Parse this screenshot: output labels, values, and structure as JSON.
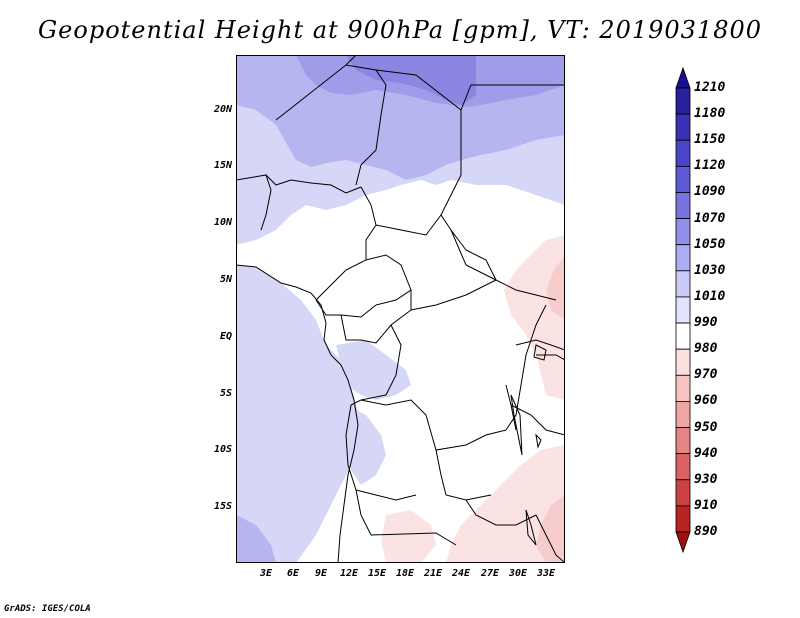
{
  "title": "Geopotential Height at 900hPa [gpm], VT: 2019031800",
  "footer": "GrADS: IGES/COLA",
  "map": {
    "region": "Central Africa",
    "lat_labels": [
      "20N",
      "15N",
      "10N",
      "5N",
      "EQ",
      "5S",
      "10S",
      "15S"
    ],
    "lon_labels": [
      "3E",
      "6E",
      "9E",
      "12E",
      "15E",
      "18E",
      "21E",
      "24E",
      "27E",
      "30E",
      "33E"
    ],
    "lat_range": [
      -20,
      25
    ],
    "lon_range": [
      0,
      35
    ]
  },
  "colorbar": {
    "levels": [
      "1210",
      "1180",
      "1150",
      "1120",
      "1090",
      "1070",
      "1050",
      "1030",
      "1010",
      "990",
      "980",
      "970",
      "960",
      "950",
      "940",
      "930",
      "910",
      "890"
    ],
    "colors": [
      "#1a0f8f",
      "#28209f",
      "#3a32b5",
      "#4b45c8",
      "#5e5ad6",
      "#7773e2",
      "#918feb",
      "#adadf2",
      "#cacaf8",
      "#e3e3fb",
      "#ffffff",
      "#fbe0e0",
      "#f6c3c3",
      "#eea5a5",
      "#e58484",
      "#da6262",
      "#cc4141",
      "#b82323",
      "#9c1010"
    ]
  }
}
